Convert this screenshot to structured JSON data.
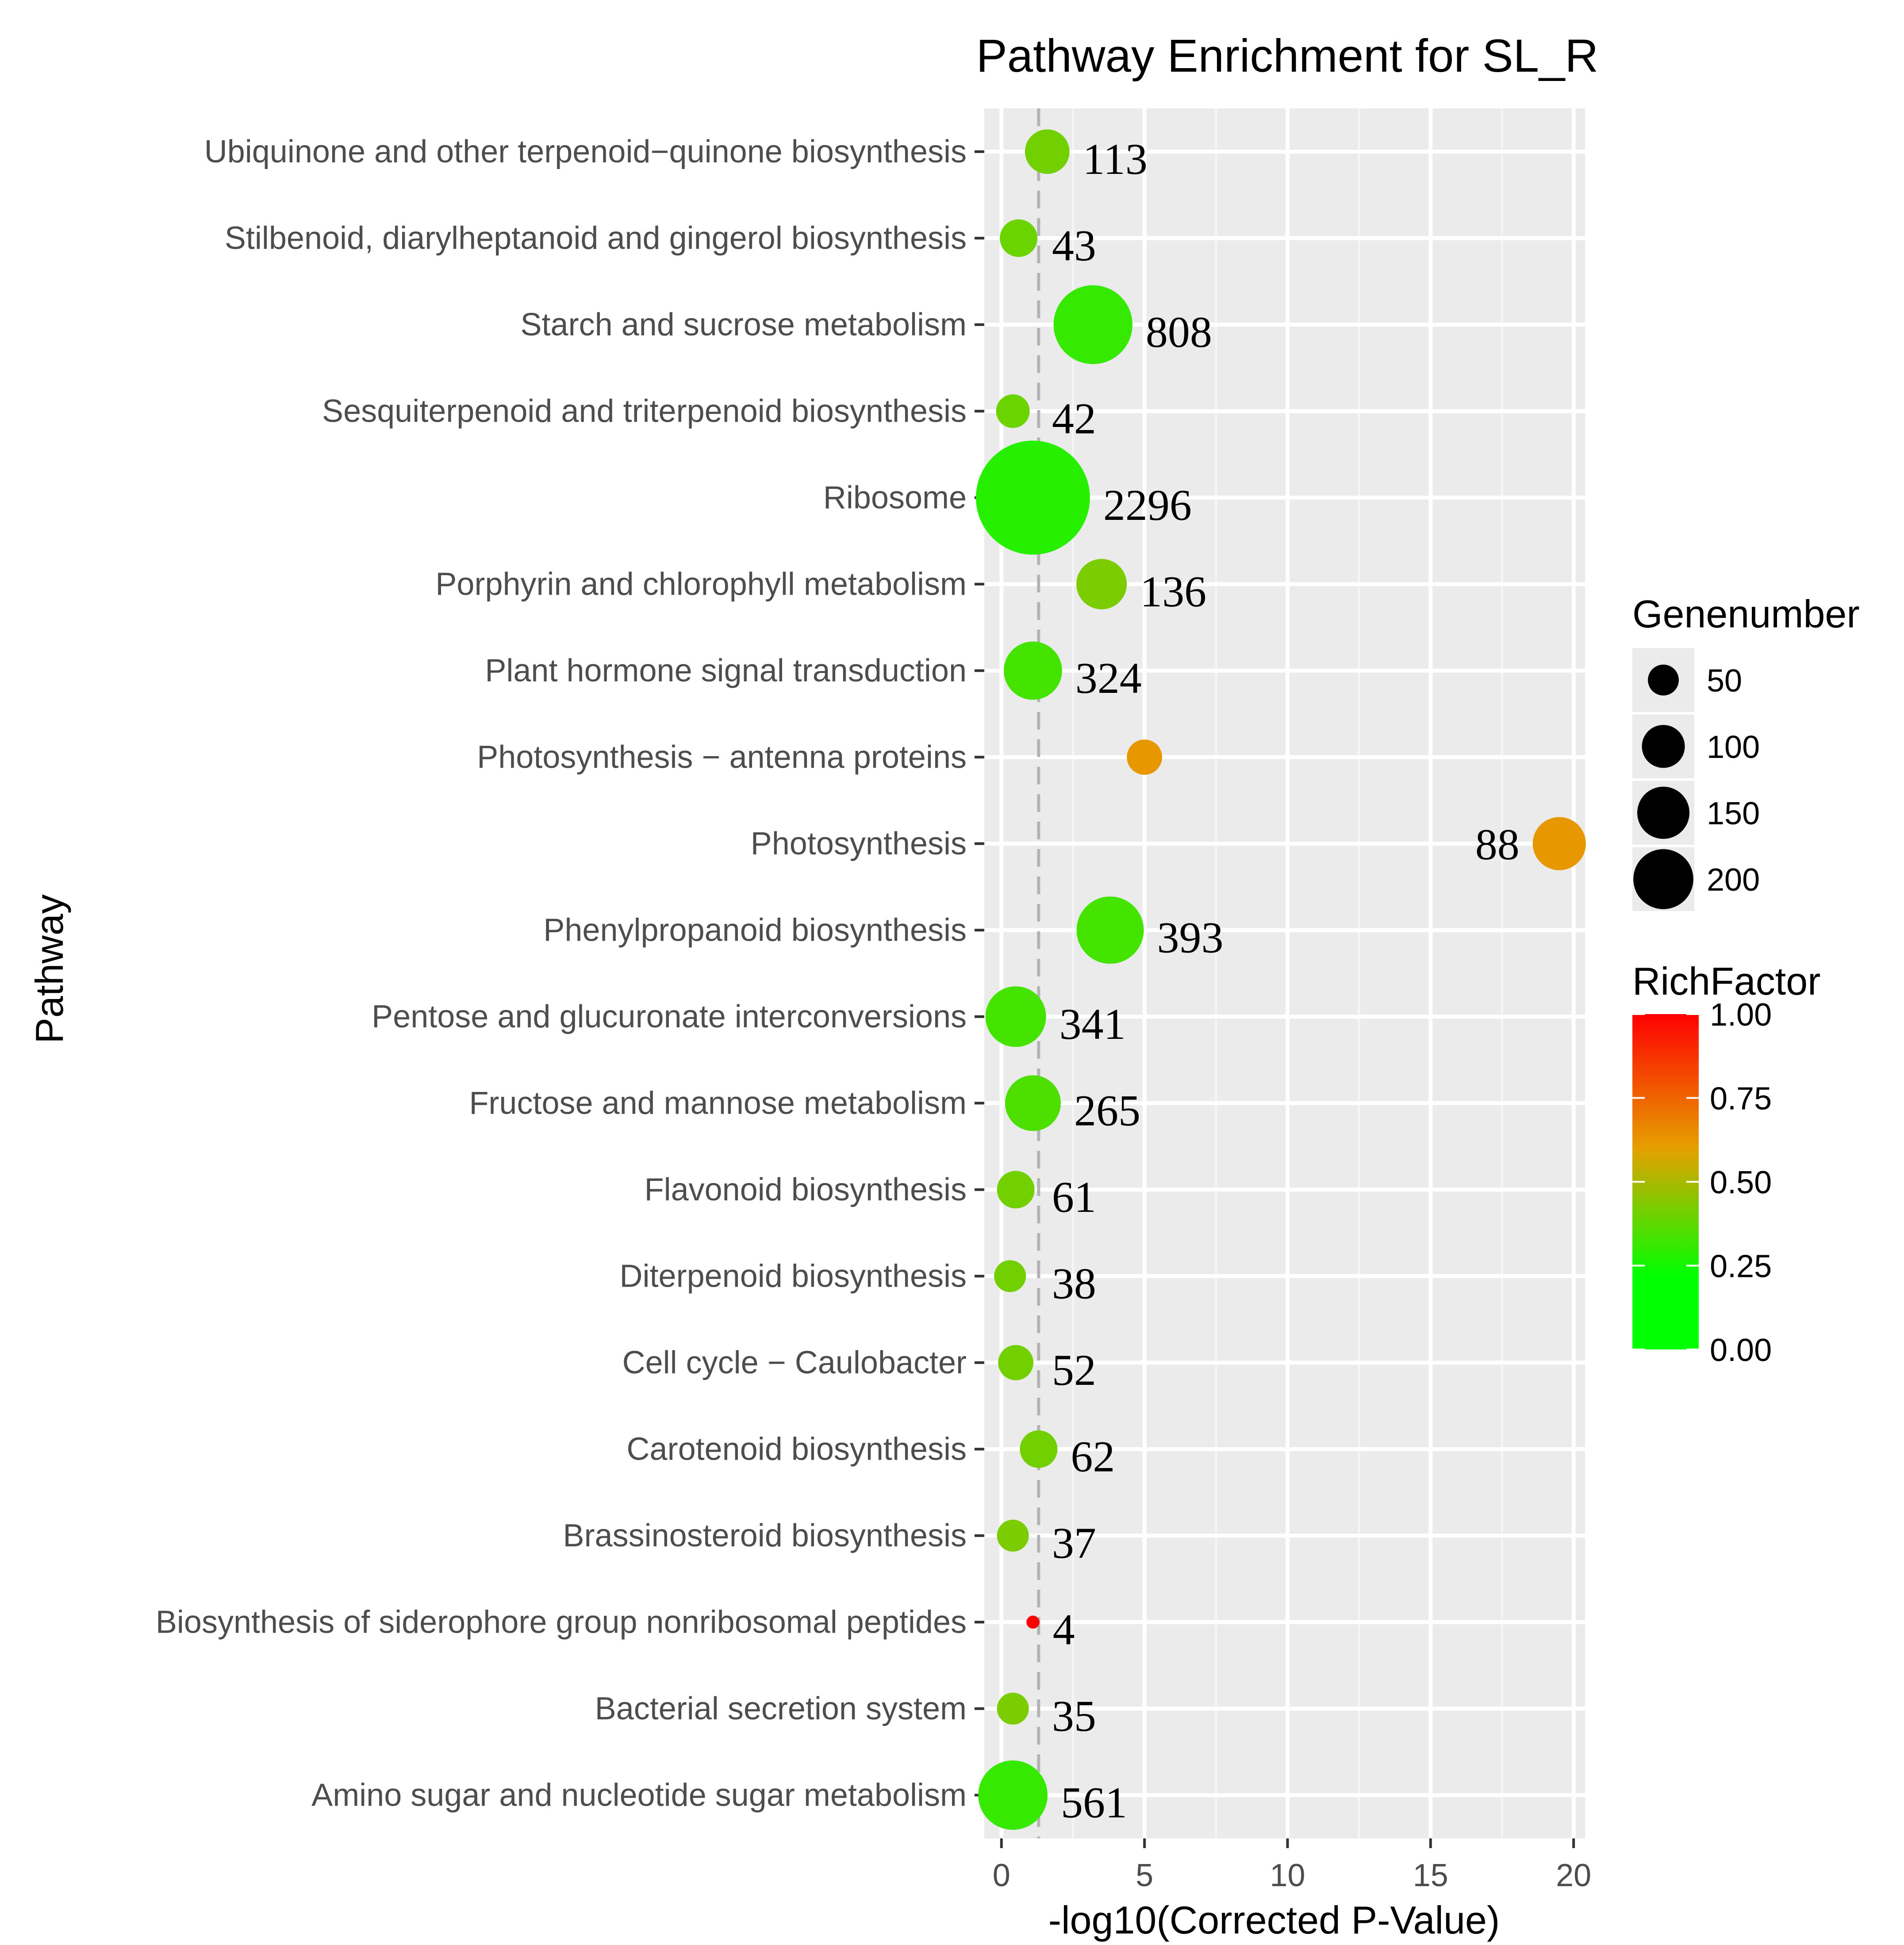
{
  "chart_data": {
    "type": "scatter",
    "title": "Pathway Enrichment for SL_R",
    "xlabel": "-log10(Corrected P-Value)",
    "ylabel": "Pathway",
    "xlim": [
      -0.6,
      20.4
    ],
    "x_ticks": [
      0,
      5,
      10,
      15,
      20
    ],
    "reference_line_x": 1.3,
    "grid": true,
    "points": [
      {
        "pathway": "Ubiquinone and other terpenoid−quinone biosynthesis",
        "x": 1.6,
        "genenumber": 35,
        "richfactor": 0.3,
        "label": "113"
      },
      {
        "pathway": "Stilbenoid, diarylheptanoid and gingerol biosynthesis",
        "x": 0.6,
        "genenumber": 25,
        "richfactor": 0.28,
        "label": "43"
      },
      {
        "pathway": "Starch and sucrose metabolism",
        "x": 3.2,
        "genenumber": 110,
        "richfactor": 0.14,
        "label": "808"
      },
      {
        "pathway": "Sesquiterpenoid and triterpenoid biosynthesis",
        "x": 0.4,
        "genenumber": 20,
        "richfactor": 0.28,
        "label": "42"
      },
      {
        "pathway": "Ribosome",
        "x": 1.1,
        "genenumber": 230,
        "richfactor": 0.1,
        "label": "2296"
      },
      {
        "pathway": "Porphyrin and chlorophyll metabolism",
        "x": 3.5,
        "genenumber": 45,
        "richfactor": 0.32,
        "label": "136"
      },
      {
        "pathway": "Plant hormone signal transduction",
        "x": 1.1,
        "genenumber": 60,
        "richfactor": 0.18,
        "label": "324"
      },
      {
        "pathway": "Photosynthesis − antenna proteins",
        "x": 5.0,
        "genenumber": 22,
        "richfactor": 0.62,
        "label": ""
      },
      {
        "pathway": "Photosynthesis",
        "x": 19.5,
        "genenumber": 50,
        "richfactor": 0.62,
        "label": "88"
      },
      {
        "pathway": "Phenylpropanoid biosynthesis",
        "x": 3.8,
        "genenumber": 80,
        "richfactor": 0.18,
        "label": "393"
      },
      {
        "pathway": "Pentose and glucuronate interconversions",
        "x": 0.5,
        "genenumber": 65,
        "richfactor": 0.18,
        "label": "341"
      },
      {
        "pathway": "Fructose and mannose metabolism",
        "x": 1.1,
        "genenumber": 55,
        "richfactor": 0.2,
        "label": "265"
      },
      {
        "pathway": "Flavonoid biosynthesis",
        "x": 0.5,
        "genenumber": 25,
        "richfactor": 0.3,
        "label": "61"
      },
      {
        "pathway": "Diterpenoid biosynthesis",
        "x": 0.3,
        "genenumber": 18,
        "richfactor": 0.3,
        "label": "38"
      },
      {
        "pathway": "Cell cycle − Caulobacter",
        "x": 0.5,
        "genenumber": 22,
        "richfactor": 0.3,
        "label": "52"
      },
      {
        "pathway": "Carotenoid biosynthesis",
        "x": 1.3,
        "genenumber": 25,
        "richfactor": 0.3,
        "label": "62"
      },
      {
        "pathway": "Brassinosteroid biosynthesis",
        "x": 0.4,
        "genenumber": 18,
        "richfactor": 0.32,
        "label": "37"
      },
      {
        "pathway": "Biosynthesis of siderophore group nonribosomal peptides",
        "x": 1.1,
        "genenumber": 3,
        "richfactor": 1.0,
        "label": "4"
      },
      {
        "pathway": "Bacterial secretion system",
        "x": 0.4,
        "genenumber": 18,
        "richfactor": 0.32,
        "label": "35"
      },
      {
        "pathway": "Amino sugar and nucleotide sugar metabolism",
        "x": 0.4,
        "genenumber": 85,
        "richfactor": 0.14,
        "label": "561"
      }
    ],
    "legend_size": {
      "title": "Genenumber",
      "values": [
        50,
        100,
        150,
        200
      ]
    },
    "legend_color": {
      "title": "RichFactor",
      "ticks": [
        "0.00",
        "0.25",
        "0.50",
        "0.75",
        "1.00"
      ],
      "low_color": "#00ff00",
      "mid_color": "#e6a000",
      "high_color": "#ff0000"
    }
  }
}
